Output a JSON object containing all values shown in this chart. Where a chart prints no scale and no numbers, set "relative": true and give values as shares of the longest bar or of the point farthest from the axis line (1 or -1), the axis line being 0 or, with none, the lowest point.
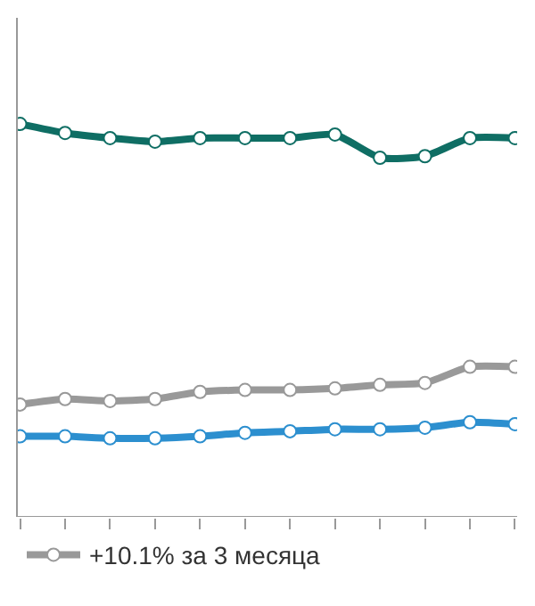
{
  "chart_data": {
    "type": "line",
    "relative": true,
    "categories": [
      null,
      null,
      null,
      null,
      null,
      null,
      null,
      null,
      null,
      null,
      null,
      null
    ],
    "series": [
      {
        "color": "#0f6e64",
        "values": [
          1,
          0.977,
          0.964,
          0.955,
          0.964,
          0.964,
          0.964,
          0.973,
          0.914,
          0.918,
          0.964,
          0.964
        ]
      },
      {
        "name": "+10.1% за 3 месяца",
        "color": "#999999",
        "values": [
          0.286,
          0.3,
          0.295,
          0.3,
          0.318,
          0.323,
          0.323,
          0.327,
          0.336,
          0.341,
          0.382,
          0.382
        ]
      },
      {
        "color": "#2c8fcf",
        "values": [
          0.205,
          0.205,
          0.2,
          0.2,
          0.205,
          0.214,
          0.218,
          0.223,
          0.223,
          0.227,
          0.241,
          0.236
        ]
      }
    ],
    "marker": "circle",
    "line_style": "solid",
    "legend": "bottom left"
  }
}
